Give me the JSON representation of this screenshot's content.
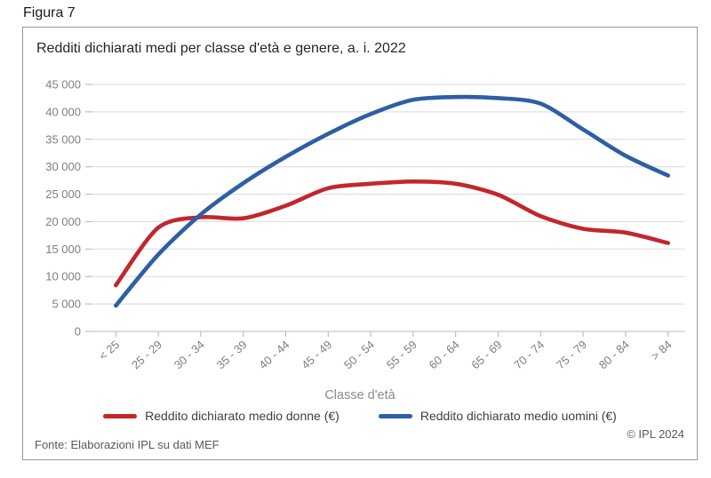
{
  "figure_label": "Figura 7",
  "chart_data": {
    "type": "line",
    "title": "Redditi dichiarati medi per classe d'età e genere, a. i. 2022",
    "xlabel": "Classe d'età",
    "ylabel": "",
    "ylim": [
      0,
      45000
    ],
    "y_tick_step": 5000,
    "y_tick_format": "space-grouped",
    "grid": true,
    "legend_position": "bottom",
    "categories": [
      "< 25",
      "25 - 29",
      "30 - 34",
      "35 - 39",
      "40 - 44",
      "45 - 49",
      "50 - 54",
      "55 - 59",
      "60 - 64",
      "65 - 69",
      "70 - 74",
      "75 - 79",
      "80 - 84",
      "> 84"
    ],
    "series": [
      {
        "name": "Reddito dichiarato medio donne (€)",
        "color": "#c1272d",
        "values": [
          8400,
          18900,
          20800,
          20600,
          22900,
          26100,
          26900,
          27300,
          26900,
          24900,
          21000,
          18700,
          18000,
          16100
        ]
      },
      {
        "name": "Reddito dichiarato medio uomini (€)",
        "color": "#2e5fa3",
        "values": [
          4700,
          14000,
          21300,
          27000,
          31800,
          36000,
          39600,
          42200,
          42700,
          42500,
          41500,
          36800,
          32000,
          28400
        ]
      }
    ]
  },
  "footer": {
    "source": "Fonte: Elaborazioni IPL su dati MEF",
    "copyright": "© IPL 2024"
  },
  "colors": {
    "grid": "#d9d9d9",
    "axis": "#bcbcbc",
    "tick": "#b3b3b3",
    "axis_label": "#7f7f7f"
  }
}
